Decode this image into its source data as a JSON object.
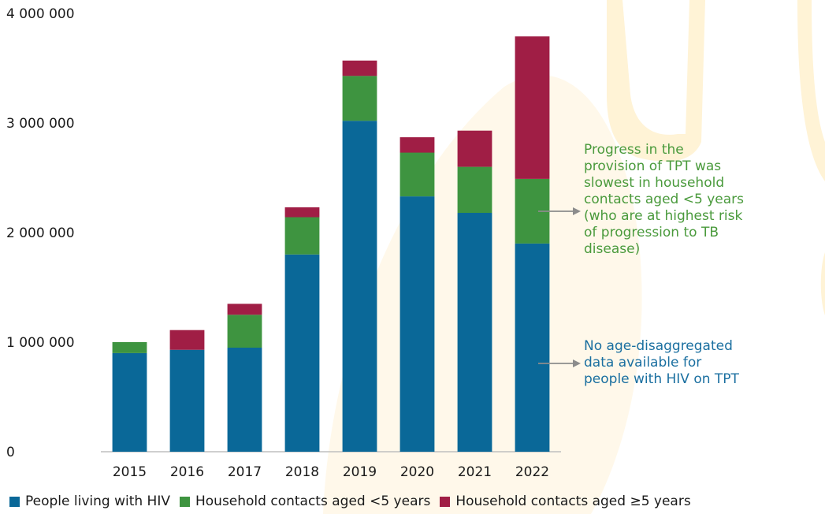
{
  "chart_data": {
    "type": "bar",
    "stacked": true,
    "categories": [
      "2015",
      "2016",
      "2017",
      "2018",
      "2019",
      "2020",
      "2021",
      "2022"
    ],
    "series": [
      {
        "name": "People living with HIV",
        "color": "#0a6898",
        "values": [
          900000,
          930000,
          950000,
          1800000,
          3020000,
          2330000,
          2180000,
          1900000
        ]
      },
      {
        "name": "Household contacts aged <5 years",
        "color": "#3e9440",
        "values": [
          100000,
          0,
          300000,
          340000,
          410000,
          400000,
          420000,
          590000
        ]
      },
      {
        "name": "Household contacts aged ≥5 years",
        "color": "#a01e45",
        "values": [
          0,
          180000,
          100000,
          90000,
          140000,
          140000,
          330000,
          1300000
        ]
      }
    ],
    "ylim": [
      0,
      4000000
    ],
    "yticks": [
      0,
      1000000,
      2000000,
      3000000,
      4000000
    ],
    "ytick_labels": [
      "0",
      "1 000 000",
      "2 000 000",
      "3 000 000",
      "4 000 000"
    ],
    "title": "",
    "xlabel": "",
    "ylabel": "",
    "grid": false,
    "legend_position": "bottom",
    "annotations": [
      {
        "name": "tpt-progress-note",
        "color": "#4a9a3c",
        "lines": [
          "Progress in the",
          "provision of TPT was",
          "slowest in household",
          "contacts aged <5 years",
          "(who are at highest risk",
          "of progression to TB",
          "disease)"
        ]
      },
      {
        "name": "hiv-no-age-data-note",
        "color": "#1a6fa0",
        "lines": [
          "No age-disaggregated",
          "data available for",
          "people with HIV on TPT"
        ]
      }
    ]
  }
}
